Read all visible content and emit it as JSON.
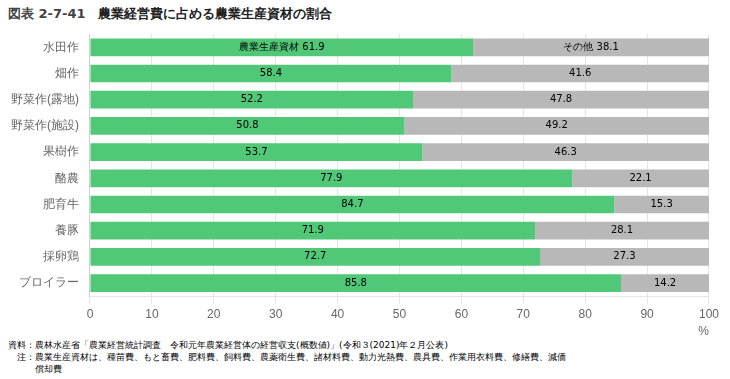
{
  "chart_data": {
    "type": "bar",
    "orientation": "horizontal",
    "stacked": true,
    "title": "農業経営費に占める農業生産資材の割合",
    "subtitle": "図表 2-7-41",
    "xlabel": "%",
    "annotations": [
      "資料：農林水産省「農業経営統計調査　令和元年農業経営体の経営収支(概数値)」(令和３(2021)年２月公表)",
      "　注：農業生産資材は、種苗費、もと畜費、肥料費、飼料費、農薬衛生費、諸材料費、動力光熱費、農具費、作業用衣料費、修繕費、減価",
      "　　　償却費"
    ],
    "categories": [
      "水田作",
      "畑作",
      "野菜作(露地)",
      "野菜作(施設)",
      "果樹作",
      "酪農",
      "肥育牛",
      "養豚",
      "採卵鶏",
      "ブロイラー"
    ],
    "series": [
      {
        "color": "#50c878",
        "values": [
          61.9,
          58.4,
          52.2,
          50.8,
          53.7,
          77.9,
          84.7,
          71.9,
          72.7,
          85.8
        ],
        "value_labels": [
          "農業生産資材 61.9",
          "58.4",
          "52.2",
          "50.8",
          "53.7",
          "77.9",
          "84.7",
          "71.9",
          "72.7",
          "85.8"
        ]
      },
      {
        "color": "#b8b8b8",
        "values": [
          38.1,
          41.6,
          47.8,
          49.2,
          46.3,
          22.1,
          15.3,
          28.1,
          27.3,
          14.2
        ],
        "value_labels": [
          "その他 38.1",
          "41.6",
          "47.8",
          "49.2",
          "46.3",
          "22.1",
          "15.3",
          "28.1",
          "27.3",
          "14.2"
        ]
      }
    ],
    "xlim": [
      0,
      100
    ],
    "xticks": [
      0,
      10,
      20,
      30,
      40,
      50,
      60,
      70,
      80,
      90,
      100
    ],
    "grid": true,
    "data_labels": true
  }
}
